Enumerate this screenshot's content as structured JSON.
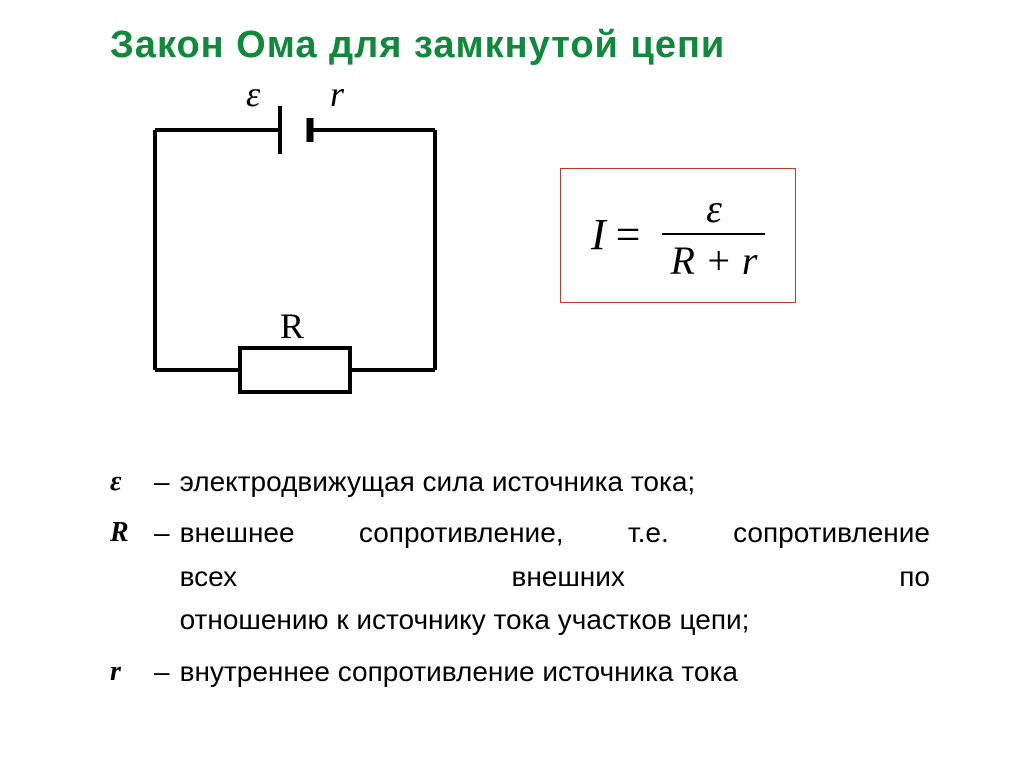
{
  "title": {
    "text": "Закон  Ома  для  замкнутой  цепи",
    "color": "#0e8a3a"
  },
  "circuit": {
    "eps_label": "ε",
    "r_label": "r",
    "R_label": "R",
    "stroke_color": "#000000",
    "stroke_width": 4,
    "label_fontsize": 36
  },
  "formula": {
    "lhs": "I",
    "eq": "=",
    "numerator": "ε",
    "denominator": "R + r",
    "border_color": "#c0392b",
    "text_color": "#000000"
  },
  "definitions": [
    {
      "symbol": "ε",
      "dash": "–",
      "text": "электродвижущая сила источника тока;",
      "bold_symbol": true,
      "justify": false
    },
    {
      "symbol": "R",
      "dash": "–",
      "text": "внешнее сопротивление, т.е. сопротивление всех внешних по отношению к источнику тока участков цепи;",
      "bold_symbol": true,
      "justify": true,
      "lines": [
        [
          "внешнее",
          "сопротивление,",
          "т.е.",
          "сопротивление"
        ],
        [
          "всех",
          "внешних",
          "по"
        ],
        [
          "отношению к источнику тока участков цепи;"
        ]
      ]
    },
    {
      "symbol": "r",
      "dash": "–",
      "text": "внутреннее сопротивление источника тока",
      "bold_symbol": true,
      "justify": false
    }
  ]
}
